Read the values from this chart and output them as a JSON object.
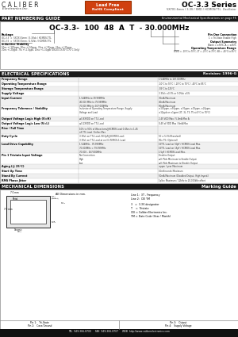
{
  "title_series": "OC-3.3 Series",
  "title_sub": "5X7X1.6mm / 3.3V / SMD / HCMOS/TTL  Oscillator",
  "logo_line1": "C A L I B E R",
  "logo_line2": "Electronics Inc.",
  "rohs_line1": "Lead Free",
  "rohs_line2": "RoHS Compliant",
  "section1_title": "PART NUMBERING GUIDE",
  "section1_right": "Environmental Mechanical Specifications on page F5",
  "part_number": "OC-3.3-  100  48  A  T  - 30.000MHz",
  "section2_title": "ELECTRICAL SPECIFICATIONS",
  "section2_right": "Revision: 1996-G",
  "elec_specs": [
    [
      "Frequency Range",
      "",
      "1.544MHz to 167.000MHz"
    ],
    [
      "Operating Temperature Range",
      "",
      "-10°C to 70°C / -20°C to 70°C / -40°C to 85°C"
    ],
    [
      "Storage Temperature Range",
      "",
      "-55°C to 125°C"
    ],
    [
      "Supply Voltage",
      "",
      "3.3Vdc ±0.3% or 5.0Vdc ±5%"
    ],
    [
      "Input Current",
      "1.544MHz to 39.999MHz\n40.000 MHz to 79.999MHz\n70.000 MHz to 167.000MHz",
      "30mA Maximum\n40mA Maximum\n90mA Maximum"
    ],
    [
      "Frequency Tolerance / Stability",
      "Inclusive of Operating Temperature Range, Supply\nVoltage and Load",
      "±100ppm, ±50ppm, ±30ppm, ±25ppm, ±20ppm,\n±10ppb or ±1ppm (2T, 3L, T3, T5 at 0°C to 70°C)"
    ],
    [
      "Output Voltage Logic High (V=H)",
      "≥0.8XVDD on TTL Load",
      "2.4V VDD Max / 5.0mA Max A"
    ],
    [
      "Output Voltage Logic Low (V=L)",
      "≤0.2XVDD on TTL Load",
      "0.4V of VDD Max / 8mA Max"
    ],
    [
      "Rise / Fall Time",
      "10% to 90% of Wave-form@HCMOS Load 0.45ns to 1.45\nnS TTL Load / 5nSec Max",
      ""
    ],
    [
      "Duty Cycle",
      "3.3Vdc on TTL Load, 90.0pF@HCMOS Load;\n3.3Vdc on TTL Load at on (0.76)MOS-1 Load",
      "50 ± 5.0%(Standard)\n90x 7% (Optional)"
    ],
    [
      "Load Drive Capability",
      "1.544MHz - 39.999MHz\n70.000MHz = 79.999MHz\n70.000 - 167.000MHz",
      "15TTL Load on 50pF / HCMOS Load Max.\n15TTL Load on 15pF / HCMOS Load Max.\n1.5pF / HCMOS Load Max."
    ],
    [
      "Pin 1 Tristate Input Voltage",
      "No Connection\nHigh\nLow",
      "Enables Output\n≥0.7Vdc Minimum to Enable Output\n≤0.3Vdc Maximum to Disable Output"
    ],
    [
      "Aging (@ 25°C)",
      "",
      "±ppm / year Maximum"
    ],
    [
      "Start Up Time",
      "",
      "10mSeconds Maximum"
    ],
    [
      "Stand By Current",
      "",
      "50mA Maximum (Disabled Output, High Imped.)"
    ],
    [
      "RMS Phase Jitter",
      "",
      "1pSec Maximum / 12kHz to 20,000kHz offset"
    ]
  ],
  "section3_title": "MECHANICAL DIMENSIONS",
  "section3_right": "Marking Guide",
  "marking_lines": [
    "Line 1:  3T - Frequency",
    "Line 2:  CEI YM",
    "3   =  3.3V designator",
    "T    =  Tristate",
    "CEI = Caliber Electronics Inc.",
    "YM = Date Code (Year / Month)"
  ],
  "pin_labels_left": [
    "Pin 1:   Tri-State",
    "Pin 2:   Case/Ground"
  ],
  "pin_labels_right": [
    "Pin 3:   Output",
    "Pin 4:   Supply Voltage"
  ],
  "footer": "TEL  949-366-8700     FAX  949-366-8707     WEB  http://www.caliberelectronics.com",
  "bg_color": "#ffffff",
  "rohs_bg": "#d04010",
  "rohs_text": "#ffffff",
  "header_dark": "#1a1a1a",
  "header_text": "#ffffff",
  "row_alt": "#f0f0f0",
  "row_norm": "#ffffff"
}
